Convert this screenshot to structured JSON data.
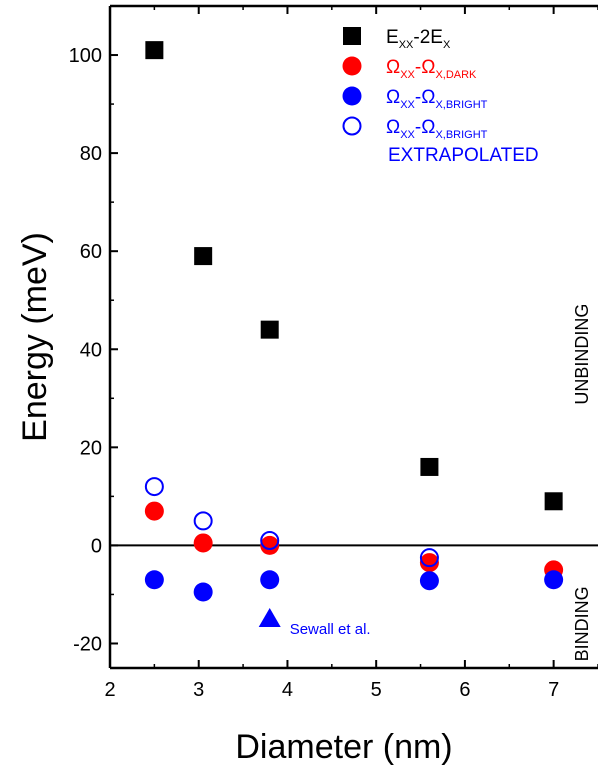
{
  "chart_data": {
    "type": "scatter",
    "xlabel": "Diameter (nm)",
    "ylabel": "Energy (meV)",
    "xlim": [
      2,
      7.5
    ],
    "ylim": [
      -25,
      110
    ],
    "x_ticks": [
      2,
      3,
      4,
      5,
      6,
      7
    ],
    "y_ticks": [
      -20,
      0,
      20,
      40,
      60,
      80,
      100
    ],
    "legend_position": "top-right",
    "series": [
      {
        "name_main": "E",
        "name_sub1": "XX",
        "name_mid": "-2E",
        "name_sub2": "X",
        "marker": "filled-square",
        "color": "#000000",
        "x": [
          2.5,
          3.05,
          3.8,
          5.6,
          7.0
        ],
        "y": [
          101,
          59,
          44,
          16,
          9
        ]
      },
      {
        "name_main": "Ω",
        "name_sub1": "XX",
        "name_mid": "-Ω",
        "name_sub2": "X,DARK",
        "marker": "filled-circle",
        "color": "#ff0000",
        "x": [
          2.5,
          3.05,
          3.8,
          5.6,
          7.0
        ],
        "y": [
          7,
          0.5,
          0,
          -3.5,
          -5
        ]
      },
      {
        "name_main": "Ω",
        "name_sub1": "XX",
        "name_mid": "-Ω",
        "name_sub2": "X,BRIGHT",
        "marker": "filled-circle",
        "color": "#0000ff",
        "x": [
          2.5,
          3.05,
          3.8,
          5.6,
          7.0
        ],
        "y": [
          -7,
          -9.5,
          -7,
          -7.2,
          -7
        ]
      },
      {
        "name_main": "Ω",
        "name_sub1": "XX",
        "name_mid": "-Ω",
        "name_sub2": "X,BRIGHT",
        "name_line2": "EXTRAPOLATED",
        "marker": "open-circle",
        "color": "#0000ff",
        "x": [
          2.5,
          3.05,
          3.8,
          5.6
        ],
        "y": [
          12,
          5,
          1,
          -2.5
        ]
      },
      {
        "marker": "filled-triangle",
        "color": "#0000ff",
        "x": [
          3.8
        ],
        "y": [
          -15
        ]
      }
    ],
    "annotations": [
      {
        "text": "Sewall et al.",
        "x": 3.8,
        "y": -17,
        "color": "#0000ff"
      },
      {
        "text": "UNBINDING",
        "color": "#000000"
      },
      {
        "text": "BINDING",
        "color": "#000000"
      }
    ],
    "zero_line": 0
  }
}
